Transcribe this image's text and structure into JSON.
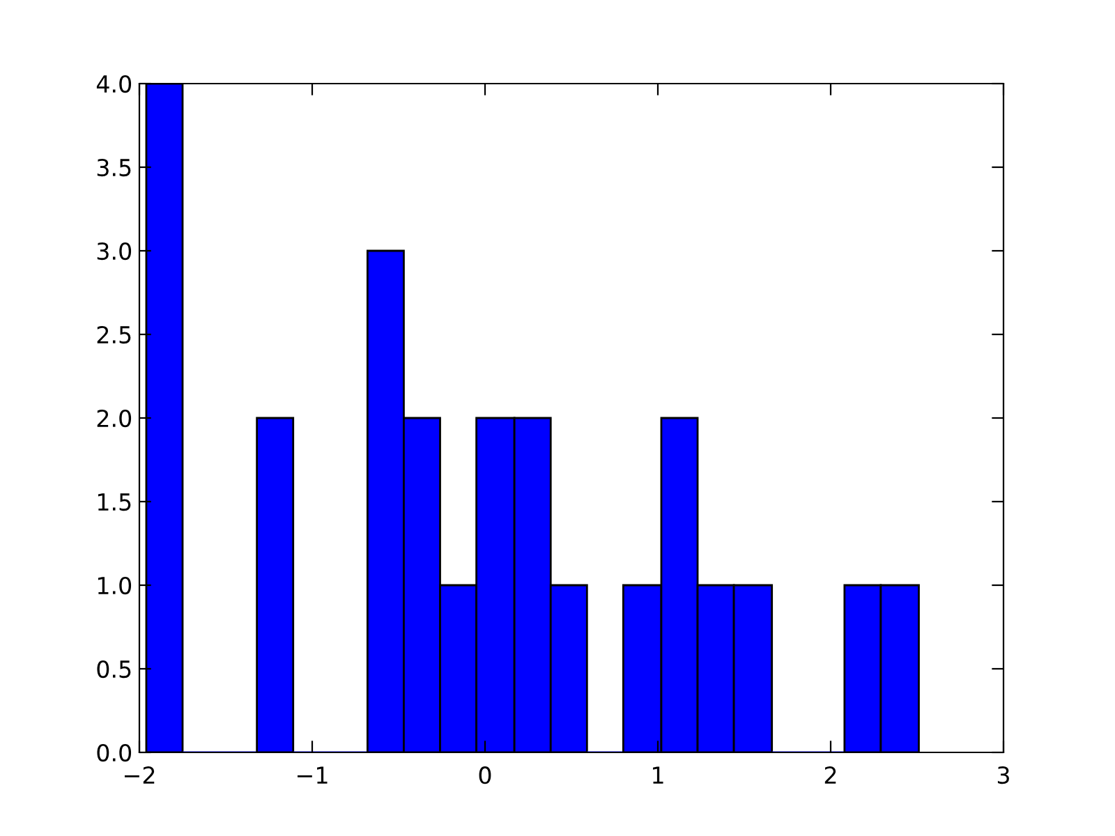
{
  "chart_data": {
    "type": "histogram",
    "bins": [
      -1.96,
      -1.75,
      -1.32,
      -1.11,
      -0.68,
      -0.47,
      -0.26,
      -0.05,
      0.17,
      0.38,
      0.59,
      0.8,
      1.02,
      1.23,
      1.44,
      1.66,
      2.08,
      2.29,
      2.51
    ],
    "values": [
      4,
      0,
      2,
      0,
      3,
      2,
      1,
      2,
      2,
      1,
      0,
      1,
      2,
      1,
      1,
      0,
      1,
      1
    ],
    "color": "#0000ff",
    "xlim": [
      -2,
      3
    ],
    "xticks": [
      {
        "value": -2,
        "label": "−2"
      },
      {
        "value": -1,
        "label": "−1"
      },
      0,
      1,
      2,
      3
    ],
    "ylim": [
      0,
      4.0
    ],
    "yticks": [
      {
        "value": 0,
        "label": "0.0"
      },
      0.5,
      {
        "value": 1,
        "label": "1.0"
      },
      1.5,
      {
        "value": 2,
        "label": "2.0"
      },
      2.5,
      {
        "value": 3,
        "label": "3.0"
      },
      3.5,
      {
        "value": 4,
        "label": "4.0"
      }
    ],
    "grid": false
  }
}
